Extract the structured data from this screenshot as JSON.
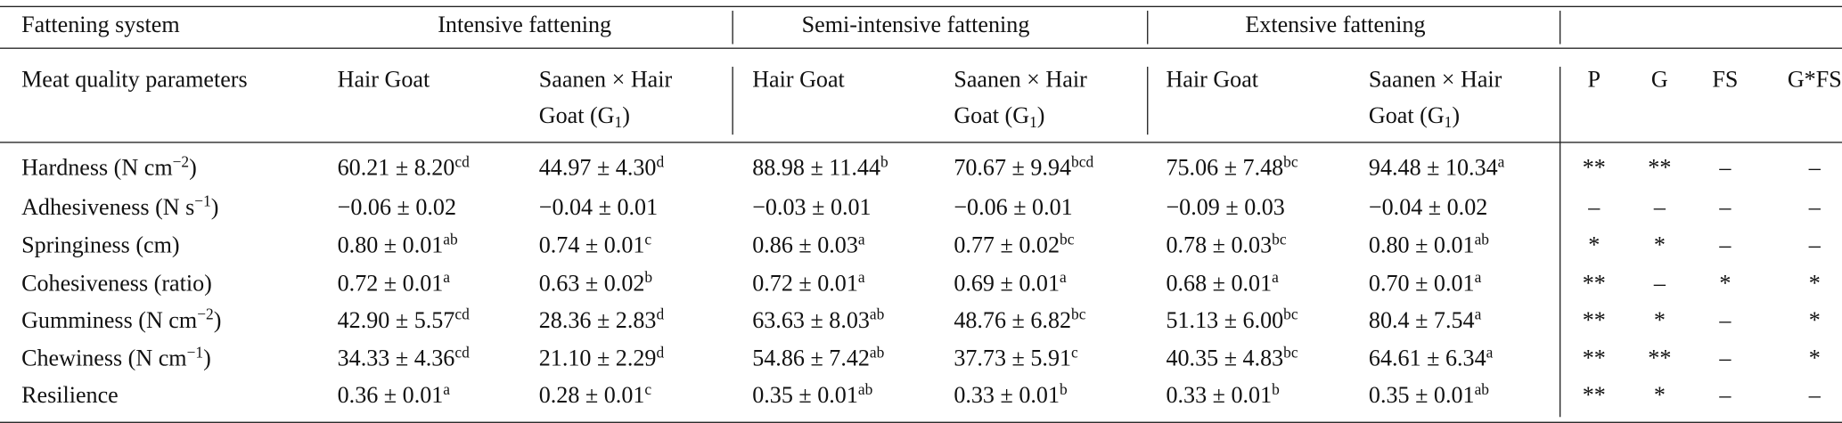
{
  "header": {
    "row1": {
      "label": "Fattening system",
      "groups": [
        "Intensive fattening",
        "Semi-intensive fattening",
        "Extensive fattening"
      ]
    },
    "row2": {
      "label": "Meat quality parameters",
      "columns": [
        "Hair Goat",
        [
          "Saanen × Hair Goat (G",
          {
            "sub": "1"
          },
          ")"
        ],
        "Hair Goat",
        [
          "Saanen × Hair Goat (G",
          {
            "sub": "1"
          },
          ")"
        ],
        "Hair Goat",
        [
          "Saanen × Hair Goat (G",
          {
            "sub": "1"
          },
          ")"
        ]
      ],
      "stats": [
        "P",
        "G",
        "FS",
        "G*FS"
      ]
    }
  },
  "table": {
    "rows": [
      {
        "parameter": [
          "Hardness (N cm",
          {
            "sup": "−2"
          },
          ")"
        ],
        "values": [
          [
            "60.21 ± 8.20",
            {
              "sup": "cd"
            }
          ],
          [
            "44.97 ± 4.30",
            {
              "sup": "d"
            }
          ],
          [
            "88.98 ± 11.44",
            {
              "sup": "b"
            }
          ],
          [
            "70.67 ± 9.94",
            {
              "sup": "bcd"
            }
          ],
          [
            "75.06 ± 7.48",
            {
              "sup": "bc"
            }
          ],
          [
            "94.48 ± 10.34",
            {
              "sup": "a"
            }
          ]
        ],
        "significance": [
          "**",
          "**",
          "–",
          "–"
        ]
      },
      {
        "parameter": [
          "Adhesiveness (N s",
          {
            "sup": "−1"
          },
          ")"
        ],
        "values": [
          "−0.06 ± 0.02",
          "−0.04 ± 0.01",
          "−0.03 ± 0.01",
          "−0.06 ± 0.01",
          "−0.09 ± 0.03",
          "−0.04 ± 0.02"
        ],
        "significance": [
          "–",
          "–",
          "–",
          "–"
        ]
      },
      {
        "parameter": "Springiness (cm)",
        "values": [
          [
            "0.80 ± 0.01",
            {
              "sup": "ab"
            }
          ],
          [
            "0.74 ± 0.01",
            {
              "sup": "c"
            }
          ],
          [
            "0.86 ± 0.03",
            {
              "sup": "a"
            }
          ],
          [
            "0.77 ± 0.02",
            {
              "sup": "bc"
            }
          ],
          [
            "0.78 ± 0.03",
            {
              "sup": "bc"
            }
          ],
          [
            "0.80 ± 0.01",
            {
              "sup": "ab"
            }
          ]
        ],
        "significance": [
          "*",
          "*",
          "–",
          "–"
        ]
      },
      {
        "parameter": "Cohesiveness (ratio)",
        "values": [
          [
            "0.72 ± 0.01",
            {
              "sup": "a"
            }
          ],
          [
            "0.63 ± 0.02",
            {
              "sup": "b"
            }
          ],
          [
            "0.72 ± 0.01",
            {
              "sup": "a"
            }
          ],
          [
            "0.69 ± 0.01",
            {
              "sup": "a"
            }
          ],
          [
            "0.68 ± 0.01",
            {
              "sup": "a"
            }
          ],
          [
            "0.70 ± 0.01",
            {
              "sup": "a"
            }
          ]
        ],
        "significance": [
          "**",
          "–",
          "*",
          "*"
        ]
      },
      {
        "parameter": [
          "Gumminess (N cm",
          {
            "sup": "−2"
          },
          ")"
        ],
        "values": [
          [
            "42.90 ± 5.57",
            {
              "sup": "cd"
            }
          ],
          [
            "28.36 ± 2.83",
            {
              "sup": "d"
            }
          ],
          [
            "63.63 ± 8.03",
            {
              "sup": "ab"
            }
          ],
          [
            "48.76 ± 6.82",
            {
              "sup": "bc"
            }
          ],
          [
            "51.13 ± 6.00",
            {
              "sup": "bc"
            }
          ],
          [
            "80.4 ± 7.54",
            {
              "sup": "a"
            }
          ]
        ],
        "significance": [
          "**",
          "*",
          "–",
          "*"
        ]
      },
      {
        "parameter": [
          "Chewiness (N cm",
          {
            "sup": "−1"
          },
          ")"
        ],
        "values": [
          [
            "34.33 ± 4.36",
            {
              "sup": "cd"
            }
          ],
          [
            "21.10 ± 2.29",
            {
              "sup": "d"
            }
          ],
          [
            "54.86 ± 7.42",
            {
              "sup": "ab"
            }
          ],
          [
            "37.73 ± 5.91",
            {
              "sup": "c"
            }
          ],
          [
            "40.35 ± 4.83",
            {
              "sup": "bc"
            }
          ],
          [
            "64.61 ± 6.34",
            {
              "sup": "a"
            }
          ]
        ],
        "significance": [
          "**",
          "**",
          "–",
          "*"
        ]
      },
      {
        "parameter": "Resilience",
        "values": [
          [
            "0.36 ± 0.01",
            {
              "sup": "a"
            }
          ],
          [
            "0.28 ± 0.01",
            {
              "sup": "c"
            }
          ],
          [
            "0.35 ± 0.01",
            {
              "sup": "ab"
            }
          ],
          [
            "0.33 ± 0.01",
            {
              "sup": "b"
            }
          ],
          [
            "0.33 ± 0.01",
            {
              "sup": "b"
            }
          ],
          [
            "0.35 ± 0.01",
            {
              "sup": "ab"
            }
          ]
        ],
        "significance": [
          "**",
          "*",
          "–",
          "–"
        ]
      }
    ]
  }
}
